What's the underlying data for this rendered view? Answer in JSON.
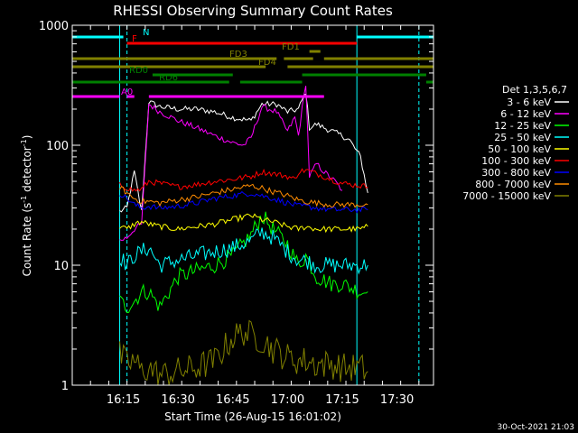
{
  "chart_data": {
    "type": "line",
    "title": "RHESSI Observing Summary Count Rates",
    "xlabel": "Start Time (26-Aug-15 16:01:02)",
    "ylabel_main": "Count Rate (s",
    "ylabel_sup": "-1",
    "ylabel_mid": " detector",
    "ylabel_sup2": "-1",
    "ylabel_end": ")",
    "y_scale": "log",
    "ylim": [
      1,
      1000
    ],
    "y_ticks": [
      {
        "v": 1,
        "label": "1"
      },
      {
        "v": 10,
        "label": "10"
      },
      {
        "v": 100,
        "label": "100"
      },
      {
        "v": 1000,
        "label": "1000"
      }
    ],
    "xlim": [
      "16:01",
      "17:40"
    ],
    "x_ticks": [
      "16:15",
      "16:30",
      "16:45",
      "17:00",
      "17:15",
      "17:30"
    ],
    "legend_title": "Det 1,3,5,6,7",
    "legend_placement": "right",
    "timestamp": "30-Oct-2021 21:03",
    "series": [
      {
        "name": "3 - 6 keV",
        "color": "#ffffff",
        "points": [
          [
            "16:14",
            28
          ],
          [
            "16:16",
            30
          ],
          [
            "16:18",
            60
          ],
          [
            "16:20",
            28
          ],
          [
            "16:22",
            230
          ],
          [
            "16:25",
            210
          ],
          [
            "16:30",
            200
          ],
          [
            "16:35",
            200
          ],
          [
            "16:40",
            190
          ],
          [
            "16:45",
            170
          ],
          [
            "16:50",
            160
          ],
          [
            "16:53",
            220
          ],
          [
            "16:57",
            220
          ],
          [
            "17:00",
            190
          ],
          [
            "17:03",
            200
          ],
          [
            "17:05",
            280
          ],
          [
            "17:06",
            140
          ],
          [
            "17:08",
            150
          ],
          [
            "17:10",
            140
          ],
          [
            "17:15",
            120
          ],
          [
            "17:17",
            110
          ],
          [
            "17:20",
            80
          ],
          [
            "17:22",
            40
          ]
        ]
      },
      {
        "name": "6 - 12 keV",
        "color": "#ff00ff",
        "points": [
          [
            "16:14",
            16
          ],
          [
            "16:16",
            17
          ],
          [
            "16:18",
            20
          ],
          [
            "16:20",
            22
          ],
          [
            "16:22",
            220
          ],
          [
            "16:25",
            190
          ],
          [
            "16:30",
            160
          ],
          [
            "16:35",
            140
          ],
          [
            "16:40",
            120
          ],
          [
            "16:45",
            105
          ],
          [
            "16:48",
            100
          ],
          [
            "16:50",
            115
          ],
          [
            "16:53",
            210
          ],
          [
            "16:57",
            190
          ],
          [
            "17:00",
            130
          ],
          [
            "17:02",
            170
          ],
          [
            "17:03",
            120
          ],
          [
            "17:05",
            330
          ],
          [
            "17:06",
            55
          ],
          [
            "17:08",
            70
          ],
          [
            "17:10",
            60
          ],
          [
            "17:13",
            50
          ],
          [
            "17:15",
            42
          ]
        ]
      },
      {
        "name": "12 - 25 keV",
        "color": "#00ff00",
        "points": [
          [
            "16:14",
            5
          ],
          [
            "16:16",
            4.5
          ],
          [
            "16:18",
            5
          ],
          [
            "16:20",
            6
          ],
          [
            "16:22",
            6
          ],
          [
            "16:25",
            4.5
          ],
          [
            "16:30",
            8
          ],
          [
            "16:35",
            9
          ],
          [
            "16:40",
            10
          ],
          [
            "16:45",
            12
          ],
          [
            "16:50",
            18
          ],
          [
            "16:53",
            26
          ],
          [
            "16:56",
            20
          ],
          [
            "17:00",
            15
          ],
          [
            "17:03",
            10
          ],
          [
            "17:05",
            12
          ],
          [
            "17:08",
            8
          ],
          [
            "17:12",
            7
          ],
          [
            "17:15",
            7
          ],
          [
            "17:20",
            6
          ],
          [
            "17:22",
            6
          ]
        ]
      },
      {
        "name": "25 - 50 keV",
        "color": "#00ffff",
        "points": [
          [
            "16:14",
            12
          ],
          [
            "16:16",
            10
          ],
          [
            "16:18",
            12
          ],
          [
            "16:20",
            13
          ],
          [
            "16:22",
            14
          ],
          [
            "16:25",
            10
          ],
          [
            "16:30",
            11
          ],
          [
            "16:35",
            12
          ],
          [
            "16:40",
            13
          ],
          [
            "16:45",
            14
          ],
          [
            "16:50",
            16
          ],
          [
            "16:53",
            19
          ],
          [
            "16:56",
            17
          ],
          [
            "17:00",
            13
          ],
          [
            "17:03",
            11
          ],
          [
            "17:05",
            11
          ],
          [
            "17:08",
            10
          ],
          [
            "17:12",
            10
          ],
          [
            "17:15",
            10
          ],
          [
            "17:20",
            10
          ],
          [
            "17:22",
            10
          ]
        ]
      },
      {
        "name": "50 - 100 keV",
        "color": "#ffff00",
        "points": [
          [
            "16:14",
            21
          ],
          [
            "16:16",
            20
          ],
          [
            "16:18",
            22
          ],
          [
            "16:20",
            23
          ],
          [
            "16:22",
            22
          ],
          [
            "16:25",
            21
          ],
          [
            "16:30",
            20
          ],
          [
            "16:35",
            21
          ],
          [
            "16:40",
            22
          ],
          [
            "16:45",
            24
          ],
          [
            "16:50",
            26
          ],
          [
            "16:53",
            24
          ],
          [
            "16:56",
            23
          ],
          [
            "17:00",
            21
          ],
          [
            "17:03",
            20
          ],
          [
            "17:05",
            21
          ],
          [
            "17:08",
            20
          ],
          [
            "17:12",
            20
          ],
          [
            "17:15",
            20
          ],
          [
            "17:20",
            20
          ],
          [
            "17:22",
            21
          ]
        ]
      },
      {
        "name": "100 - 300 keV",
        "color": "#ff0000",
        "points": [
          [
            "16:14",
            47
          ],
          [
            "16:16",
            44
          ],
          [
            "16:18",
            42
          ],
          [
            "16:20",
            43
          ],
          [
            "16:22",
            50
          ],
          [
            "16:25",
            48
          ],
          [
            "16:30",
            45
          ],
          [
            "16:35",
            47
          ],
          [
            "16:40",
            50
          ],
          [
            "16:45",
            52
          ],
          [
            "16:50",
            55
          ],
          [
            "16:53",
            60
          ],
          [
            "16:56",
            58
          ],
          [
            "17:00",
            55
          ],
          [
            "17:02",
            52
          ],
          [
            "17:03",
            60
          ],
          [
            "17:05",
            62
          ],
          [
            "17:08",
            58
          ],
          [
            "17:12",
            52
          ],
          [
            "17:15",
            48
          ],
          [
            "17:20",
            46
          ],
          [
            "17:22",
            45
          ]
        ]
      },
      {
        "name": "300 - 800 keV",
        "color": "#0000ff",
        "points": [
          [
            "16:14",
            40
          ],
          [
            "16:16",
            36
          ],
          [
            "16:18",
            32
          ],
          [
            "16:20",
            30
          ],
          [
            "16:22",
            31
          ],
          [
            "16:25",
            30
          ],
          [
            "16:30",
            31
          ],
          [
            "16:35",
            33
          ],
          [
            "16:40",
            36
          ],
          [
            "16:45",
            38
          ],
          [
            "16:50",
            40
          ],
          [
            "16:53",
            38
          ],
          [
            "16:56",
            36
          ],
          [
            "17:00",
            33
          ],
          [
            "17:03",
            31
          ],
          [
            "17:05",
            31
          ],
          [
            "17:08",
            30
          ],
          [
            "17:12",
            29
          ],
          [
            "17:15",
            29
          ],
          [
            "17:20",
            29
          ],
          [
            "17:22",
            29
          ]
        ]
      },
      {
        "name": "800 - 7000 keV",
        "color": "#ff8c00",
        "points": [
          [
            "16:14",
            45
          ],
          [
            "16:16",
            40
          ],
          [
            "16:18",
            36
          ],
          [
            "16:20",
            34
          ],
          [
            "16:22",
            34
          ],
          [
            "16:25",
            33
          ],
          [
            "16:30",
            35
          ],
          [
            "16:35",
            37
          ],
          [
            "16:40",
            40
          ],
          [
            "16:45",
            43
          ],
          [
            "16:50",
            46
          ],
          [
            "16:53",
            44
          ],
          [
            "16:56",
            41
          ],
          [
            "17:00",
            38
          ],
          [
            "17:03",
            35
          ],
          [
            "17:05",
            34
          ],
          [
            "17:08",
            33
          ],
          [
            "17:12",
            32
          ],
          [
            "17:15",
            32
          ],
          [
            "17:20",
            32
          ],
          [
            "17:22",
            32
          ]
        ]
      },
      {
        "name": "7000 - 15000 keV",
        "color": "#808000",
        "points": [
          [
            "16:14",
            1.8
          ],
          [
            "16:16",
            1.5
          ],
          [
            "16:18",
            1.6
          ],
          [
            "16:20",
            1.3
          ],
          [
            "16:22",
            1.4
          ],
          [
            "16:25",
            1.2
          ],
          [
            "16:30",
            1.3
          ],
          [
            "16:35",
            1.4
          ],
          [
            "16:40",
            1.6
          ],
          [
            "16:45",
            2.5
          ],
          [
            "16:48",
            2.8
          ],
          [
            "16:50",
            2.6
          ],
          [
            "16:53",
            2.4
          ],
          [
            "16:56",
            2.0
          ],
          [
            "17:00",
            1.7
          ],
          [
            "17:03",
            1.6
          ],
          [
            "17:05",
            1.6
          ],
          [
            "17:08",
            1.5
          ],
          [
            "17:12",
            1.5
          ],
          [
            "17:15",
            1.4
          ],
          [
            "17:20",
            1.4
          ],
          [
            "17:22",
            1.3
          ]
        ]
      }
    ],
    "flags": [
      {
        "label": "N",
        "color": "#00ffff",
        "segments": [
          [
            "16:01",
            "16:15"
          ],
          [
            "17:19",
            "17:40"
          ]
        ]
      },
      {
        "label": "F",
        "color": "#ff0000",
        "segments": [
          [
            "16:16",
            "17:19"
          ]
        ]
      },
      {
        "label": "FD1",
        "color": "#808000",
        "segments": [
          [
            "17:06",
            "17:09"
          ]
        ]
      },
      {
        "label": "FD3",
        "color": "#808000",
        "segments": [
          [
            "16:01",
            "16:57"
          ],
          [
            "16:59",
            "17:07"
          ],
          [
            "17:10",
            "17:40"
          ]
        ]
      },
      {
        "label": "FD4",
        "color": "#808000",
        "segments": [
          [
            "16:01",
            "16:54"
          ],
          [
            "17:00",
            "17:40"
          ]
        ]
      },
      {
        "label": "RD0",
        "color": "#008000",
        "segments": [
          [
            "16:23",
            "16:45"
          ],
          [
            "17:04",
            "17:38"
          ]
        ]
      },
      {
        "label": "RD6",
        "color": "#008000",
        "segments": [
          [
            "16:01",
            "16:44"
          ],
          [
            "16:47",
            "17:04"
          ],
          [
            "17:38",
            "17:40"
          ]
        ]
      },
      {
        "label": "A0",
        "color": "#ff00ff",
        "segments": [
          [
            "16:01",
            "16:14"
          ],
          [
            "16:16",
            "16:18"
          ],
          [
            "16:22",
            "17:10"
          ]
        ]
      }
    ],
    "vertical_lines": [
      {
        "t": "16:01",
        "color": "#00ffff",
        "style": "solid"
      },
      {
        "t": "16:16",
        "color": "#00ffff",
        "style": "dashed"
      },
      {
        "t": "16:14",
        "color": "#00ffff",
        "style": "solid"
      },
      {
        "t": "17:19",
        "color": "#00ffff",
        "style": "solid"
      },
      {
        "t": "17:36",
        "color": "#00ffff",
        "style": "dashed"
      }
    ]
  }
}
